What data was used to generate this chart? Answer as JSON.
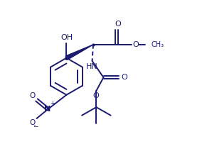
{
  "bg_color": "#ffffff",
  "line_color": "#1a1a6e",
  "lw": 1.4,
  "figsize": [
    2.91,
    2.27
  ],
  "dpi": 100,
  "xlim": [
    0,
    10
  ],
  "ylim": [
    0,
    7.8
  ]
}
